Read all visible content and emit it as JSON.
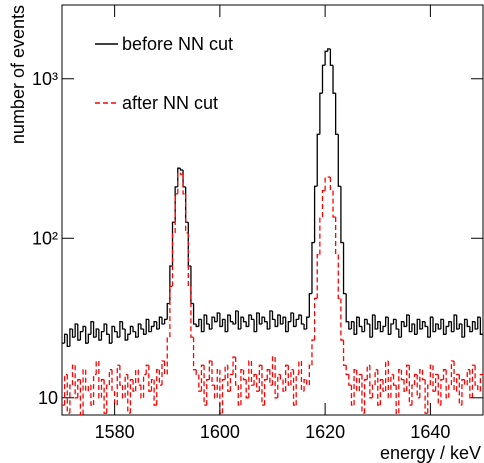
{
  "chart_data": {
    "type": "histogram",
    "xlabel": "energy / keV",
    "ylabel": "number of events",
    "log_y": true,
    "legend": "upper left",
    "xlim": [
      1570,
      1650
    ],
    "ylim": [
      7.8,
      2900
    ],
    "xticks": [
      1580,
      1600,
      1620,
      1640
    ],
    "yticks": [
      10,
      {
        "value": 100,
        "label": "10²"
      },
      {
        "value": 1000,
        "label": "10³"
      }
    ],
    "bins": [
      1570,
      1570.5,
      1571,
      1571.5,
      1572,
      1572.5,
      1573,
      1573.5,
      1574,
      1574.5,
      1575,
      1575.5,
      1576,
      1576.5,
      1577,
      1577.5,
      1578,
      1578.5,
      1579,
      1579.5,
      1580,
      1580.5,
      1581,
      1581.5,
      1582,
      1582.5,
      1583,
      1583.5,
      1584,
      1584.5,
      1585,
      1585.5,
      1586,
      1586.5,
      1587,
      1587.5,
      1588,
      1588.5,
      1589,
      1589.5,
      1590,
      1590.5,
      1591,
      1591.5,
      1592,
      1592.5,
      1593,
      1593.5,
      1594,
      1594.5,
      1595,
      1595.5,
      1596,
      1596.5,
      1597,
      1597.5,
      1598,
      1598.5,
      1599,
      1599.5,
      1600,
      1600.5,
      1601,
      1601.5,
      1602,
      1602.5,
      1603,
      1603.5,
      1604,
      1604.5,
      1605,
      1605.5,
      1606,
      1606.5,
      1607,
      1607.5,
      1608,
      1608.5,
      1609,
      1609.5,
      1610,
      1610.5,
      1611,
      1611.5,
      1612,
      1612.5,
      1613,
      1613.5,
      1614,
      1614.5,
      1615,
      1615.5,
      1616,
      1616.5,
      1617,
      1617.5,
      1618,
      1618.5,
      1619,
      1619.5,
      1620,
      1620.5,
      1621,
      1621.5,
      1622,
      1622.5,
      1623,
      1623.5,
      1624,
      1624.5,
      1625,
      1625.5,
      1626,
      1626.5,
      1627,
      1627.5,
      1628,
      1628.5,
      1629,
      1629.5,
      1630,
      1630.5,
      1631,
      1631.5,
      1632,
      1632.5,
      1633,
      1633.5,
      1634,
      1634.5,
      1635,
      1635.5,
      1636,
      1636.5,
      1637,
      1637.5,
      1638,
      1638.5,
      1639,
      1639.5,
      1640,
      1640.5,
      1641,
      1641.5,
      1642,
      1642.5,
      1643,
      1643.5,
      1644,
      1644.5,
      1645,
      1645.5,
      1646,
      1646.5,
      1647,
      1647.5,
      1648,
      1648.5,
      1649,
      1649.5,
      1650
    ],
    "series": [
      {
        "name": "before NN cut",
        "color": "#000000",
        "style": "solid",
        "values": [
          22,
          25,
          21,
          27,
          24,
          29,
          23,
          26,
          28,
          22,
          25,
          30,
          24,
          27,
          23,
          26,
          29,
          25,
          22,
          28,
          26,
          24,
          30,
          27,
          23,
          25,
          28,
          26,
          24,
          29,
          27,
          25,
          31,
          26,
          28,
          30,
          27,
          32,
          29,
          31,
          39,
          67,
          126,
          210,
          275,
          268,
          210,
          126,
          67,
          39,
          29,
          28,
          31,
          26,
          33,
          29,
          27,
          32,
          30,
          34,
          28,
          31,
          26,
          33,
          30,
          29,
          35,
          27,
          32,
          30,
          28,
          33,
          31,
          26,
          34,
          29,
          32,
          30,
          27,
          35,
          31,
          28,
          33,
          29,
          32,
          26,
          30,
          34,
          28,
          31,
          33,
          29,
          27,
          32,
          45,
          94,
          212,
          449,
          812,
          1215,
          1486,
          1540,
          1215,
          812,
          449,
          212,
          94,
          45,
          30,
          27,
          30,
          25,
          32,
          28,
          26,
          31,
          29,
          24,
          33,
          27,
          30,
          26,
          28,
          32,
          25,
          29,
          31,
          27,
          24,
          30,
          28,
          33,
          26,
          29,
          25,
          31,
          27,
          30,
          28,
          24,
          32,
          26,
          29,
          27,
          31,
          25,
          28,
          30,
          26,
          33,
          27,
          29,
          24,
          31,
          28,
          26,
          30,
          27,
          32,
          25
        ]
      },
      {
        "name": "after NN cut",
        "color": "#ff0000",
        "style": "dashed",
        "values": [
          9,
          14,
          8,
          12,
          16,
          10,
          13,
          7,
          15,
          11,
          12,
          9,
          14,
          17,
          10,
          13,
          8,
          12,
          15,
          11,
          9,
          16,
          12,
          10,
          14,
          8,
          13,
          11,
          15,
          12,
          10,
          14,
          16,
          11,
          13,
          9,
          15,
          12,
          17,
          14,
          24,
          50,
          108,
          190,
          258,
          252,
          190,
          108,
          50,
          24,
          15,
          14,
          11,
          16,
          9,
          13,
          17,
          12,
          10,
          15,
          8,
          13,
          16,
          11,
          14,
          18,
          12,
          9,
          15,
          13,
          10,
          17,
          12,
          14,
          11,
          16,
          9,
          13,
          15,
          12,
          18,
          10,
          14,
          13,
          11,
          16,
          12,
          15,
          9,
          14,
          17,
          11,
          13,
          12,
          16,
          23,
          42,
          79,
          136,
          199,
          242,
          242,
          199,
          136,
          79,
          42,
          23,
          16,
          14,
          12,
          9,
          15,
          11,
          14,
          8,
          13,
          16,
          10,
          12,
          15,
          9,
          13,
          11,
          17,
          10,
          14,
          12,
          8,
          15,
          13,
          11,
          16,
          9,
          12,
          14,
          10,
          15,
          13,
          8,
          12,
          16,
          11,
          14,
          9,
          13,
          15,
          10,
          12,
          17,
          11,
          14,
          9,
          13,
          12,
          15,
          10,
          16,
          12,
          11,
          14
        ]
      }
    ]
  }
}
